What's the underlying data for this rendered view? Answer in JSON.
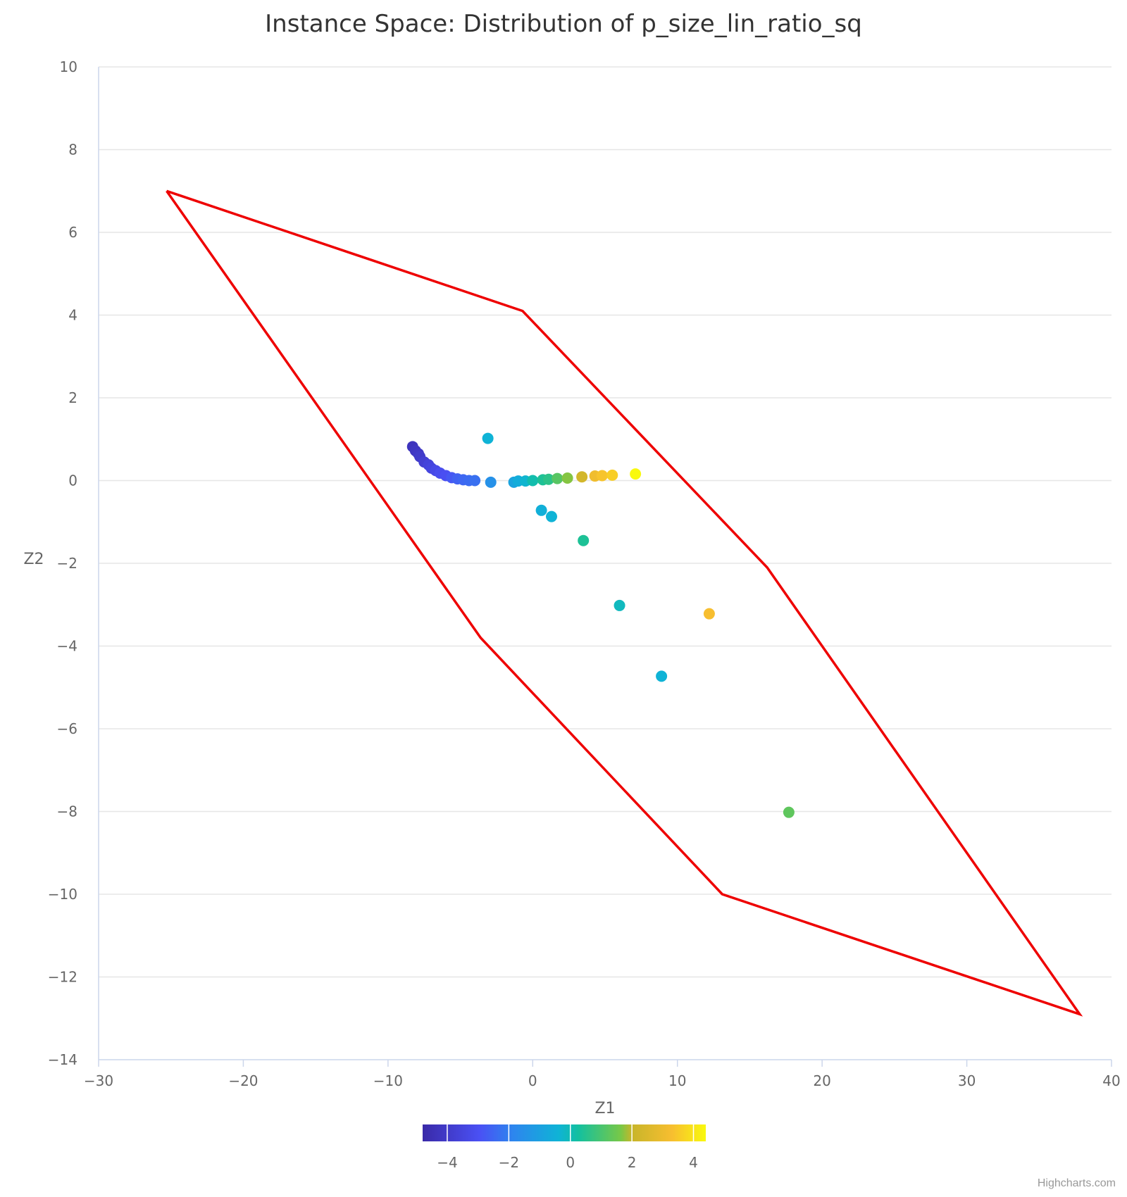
{
  "chart_data": {
    "type": "scatter",
    "title": "Instance Space: Distribution of p_size_lin_ratio_sq",
    "xlabel": "Z1",
    "ylabel": "Z2",
    "xlim": [
      -30,
      40
    ],
    "ylim": [
      -14,
      10
    ],
    "xticks": [
      -30,
      -20,
      -10,
      0,
      10,
      20,
      30,
      40
    ],
    "yticks": [
      -14,
      -12,
      -10,
      -8,
      -6,
      -4,
      -2,
      0,
      2,
      4,
      6,
      8,
      10
    ],
    "grid": "horizontal",
    "boundary": {
      "name": "",
      "color": "#ee0000",
      "points": [
        [
          -25.3,
          7.0
        ],
        [
          -0.7,
          4.1
        ],
        [
          16.2,
          -2.1
        ],
        [
          37.8,
          -12.9
        ],
        [
          13.1,
          -10.0
        ],
        [
          -3.6,
          -3.8
        ],
        [
          -25.3,
          7.0
        ]
      ]
    },
    "points": [
      {
        "x": -8.3,
        "y": 0.82,
        "v": -4.3
      },
      {
        "x": -8.1,
        "y": 0.72,
        "v": -4.2
      },
      {
        "x": -7.9,
        "y": 0.65,
        "v": -4.1
      },
      {
        "x": -7.8,
        "y": 0.58,
        "v": -4.0
      },
      {
        "x": -7.5,
        "y": 0.45,
        "v": -3.8
      },
      {
        "x": -7.2,
        "y": 0.38,
        "v": -3.6
      },
      {
        "x": -7.0,
        "y": 0.3,
        "v": -3.5
      },
      {
        "x": -6.7,
        "y": 0.24,
        "v": -3.3
      },
      {
        "x": -6.4,
        "y": 0.18,
        "v": -3.1
      },
      {
        "x": -6.0,
        "y": 0.12,
        "v": -3.0
      },
      {
        "x": -5.6,
        "y": 0.07,
        "v": -2.8
      },
      {
        "x": -5.2,
        "y": 0.04,
        "v": -2.6
      },
      {
        "x": -4.8,
        "y": 0.02,
        "v": -2.5
      },
      {
        "x": -4.4,
        "y": 0.0,
        "v": -2.4
      },
      {
        "x": -4.0,
        "y": 0.0,
        "v": -2.3
      },
      {
        "x": -2.9,
        "y": -0.04,
        "v": -1.5
      },
      {
        "x": -3.1,
        "y": 1.02,
        "v": -0.4
      },
      {
        "x": -1.3,
        "y": -0.04,
        "v": -0.9
      },
      {
        "x": -1.0,
        "y": -0.01,
        "v": -0.6
      },
      {
        "x": -0.5,
        "y": -0.01,
        "v": -0.3
      },
      {
        "x": 0.0,
        "y": 0.0,
        "v": 0.1
      },
      {
        "x": 0.7,
        "y": 0.02,
        "v": 0.4
      },
      {
        "x": 1.1,
        "y": 0.03,
        "v": 0.6
      },
      {
        "x": 1.7,
        "y": 0.05,
        "v": 1.2
      },
      {
        "x": 2.4,
        "y": 0.06,
        "v": 1.7
      },
      {
        "x": 3.4,
        "y": 0.09,
        "v": 2.3
      },
      {
        "x": 4.3,
        "y": 0.11,
        "v": 3.1
      },
      {
        "x": 4.8,
        "y": 0.12,
        "v": 3.4
      },
      {
        "x": 5.5,
        "y": 0.13,
        "v": 3.6
      },
      {
        "x": 7.1,
        "y": 0.16,
        "v": 4.4
      },
      {
        "x": 0.6,
        "y": -0.72,
        "v": -0.5
      },
      {
        "x": 1.3,
        "y": -0.87,
        "v": -0.4
      },
      {
        "x": 3.5,
        "y": -1.45,
        "v": 0.4
      },
      {
        "x": 6.0,
        "y": -3.02,
        "v": -0.1
      },
      {
        "x": 12.2,
        "y": -3.22,
        "v": 3.3
      },
      {
        "x": 8.9,
        "y": -4.73,
        "v": -0.4
      },
      {
        "x": 17.7,
        "y": -8.02,
        "v": 1.3
      }
    ],
    "colorAxis": {
      "min": -4.8,
      "max": 4.4,
      "ticks": [
        -4,
        -2,
        0,
        2,
        4
      ],
      "stops": [
        [
          0.0,
          "#3a2aa8"
        ],
        [
          0.2,
          "#4a50f4"
        ],
        [
          0.32,
          "#2d86ee"
        ],
        [
          0.48,
          "#0fb3d6"
        ],
        [
          0.55,
          "#13c09f"
        ],
        [
          0.7,
          "#78c847"
        ],
        [
          0.74,
          "#c8b52a"
        ],
        [
          0.88,
          "#f7be30"
        ],
        [
          1.0,
          "#f9f90e"
        ]
      ]
    }
  },
  "credits": "Highcharts.com"
}
